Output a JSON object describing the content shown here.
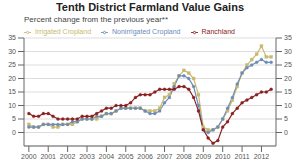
{
  "chart_data": {
    "type": "line",
    "title": "Tenth District Farmland Value Gains",
    "subtitle": "Percent change from the previous year**",
    "x": [
      2000,
      2000.25,
      2000.5,
      2000.75,
      2001,
      2001.25,
      2001.5,
      2001.75,
      2002,
      2002.25,
      2002.5,
      2002.75,
      2003,
      2003.25,
      2003.5,
      2003.75,
      2004,
      2004.25,
      2004.5,
      2004.75,
      2005,
      2005.25,
      2005.5,
      2005.75,
      2006,
      2006.25,
      2006.5,
      2006.75,
      2007,
      2007.25,
      2007.5,
      2007.75,
      2008,
      2008.25,
      2008.5,
      2008.75,
      2009,
      2009.25,
      2009.5,
      2009.75,
      2010,
      2010.25,
      2010.5,
      2010.75,
      2011,
      2011.25,
      2011.5,
      2011.75,
      2012,
      2012.25,
      2012.5
    ],
    "xlim": [
      1999.75,
      2012.75
    ],
    "xticks": [
      2000,
      2001,
      2002,
      2003,
      2004,
      2005,
      2006,
      2007,
      2008,
      2009,
      2010,
      2011,
      2012
    ],
    "ylim": [
      -5,
      35
    ],
    "yticks": [
      0,
      5,
      10,
      15,
      20,
      25,
      30,
      35
    ],
    "y2lim": [
      -5,
      35
    ],
    "y2ticks": [
      0,
      5,
      10,
      15,
      20,
      25,
      30,
      35
    ],
    "grid": true,
    "legend": "upper left",
    "series": [
      {
        "name": "Irrigated Cropland",
        "color": "#c8b96e",
        "marker": "square",
        "values": [
          3,
          2,
          2,
          3,
          3,
          2,
          2,
          3,
          3,
          3,
          4,
          5,
          5,
          5,
          5,
          6,
          7,
          7,
          8,
          9,
          9,
          9,
          9,
          9,
          8,
          8,
          8,
          9,
          13,
          14,
          18,
          21,
          23,
          22,
          20,
          14,
          2,
          1,
          1,
          2,
          5,
          8,
          12,
          17,
          22,
          25,
          27,
          29,
          32,
          28,
          28
        ]
      },
      {
        "name": "Nonirrigated Cropland",
        "color": "#6b8cba",
        "marker": "circle",
        "values": [
          2,
          2,
          2,
          3,
          3,
          3,
          3,
          3,
          3,
          4,
          4,
          5,
          5,
          5,
          6,
          6,
          7,
          7,
          8,
          9,
          9,
          9,
          9,
          9,
          8,
          7,
          7,
          8,
          11,
          13,
          17,
          21,
          21,
          20,
          17,
          10,
          1,
          0,
          1,
          2,
          5,
          9,
          13,
          18,
          22,
          24,
          25,
          26,
          27,
          26,
          26
        ]
      },
      {
        "name": "Ranchland",
        "color": "#8b2020",
        "marker": "circle",
        "values": [
          7,
          6,
          6,
          7,
          7,
          6,
          5,
          5,
          5,
          5,
          5,
          6,
          6,
          6,
          7,
          8,
          9,
          9,
          10,
          10,
          10,
          11,
          13,
          14,
          14,
          14,
          15,
          16,
          16,
          16,
          16,
          17,
          17,
          16,
          13,
          8,
          1,
          -2,
          -4,
          -3,
          2,
          4,
          7,
          9,
          11,
          12,
          13,
          14,
          15,
          15,
          16
        ]
      }
    ]
  }
}
